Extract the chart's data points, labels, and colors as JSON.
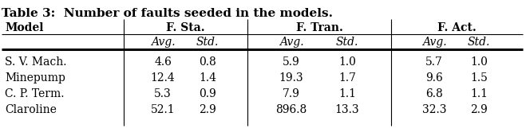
{
  "title": "Table 3:  Number of faults seeded in the models.",
  "col_groups": [
    "F. Sta.",
    "F. Tran.",
    "F. Act."
  ],
  "row_labels": [
    "S. V. Mach.",
    "Minepump",
    "C. P. Term.",
    "Claroline"
  ],
  "data": [
    [
      "4.6",
      "0.8",
      "5.9",
      "1.0",
      "5.7",
      "1.0"
    ],
    [
      "12.4",
      "1.4",
      "19.3",
      "1.7",
      "9.6",
      "1.5"
    ],
    [
      "5.3",
      "0.9",
      "7.9",
      "1.1",
      "6.8",
      "1.1"
    ],
    [
      "52.1",
      "2.9",
      "896.8",
      "13.3",
      "32.3",
      "2.9"
    ]
  ],
  "background_color": "#ffffff",
  "title_fontsize": 11,
  "header_fontsize": 10,
  "data_fontsize": 10
}
